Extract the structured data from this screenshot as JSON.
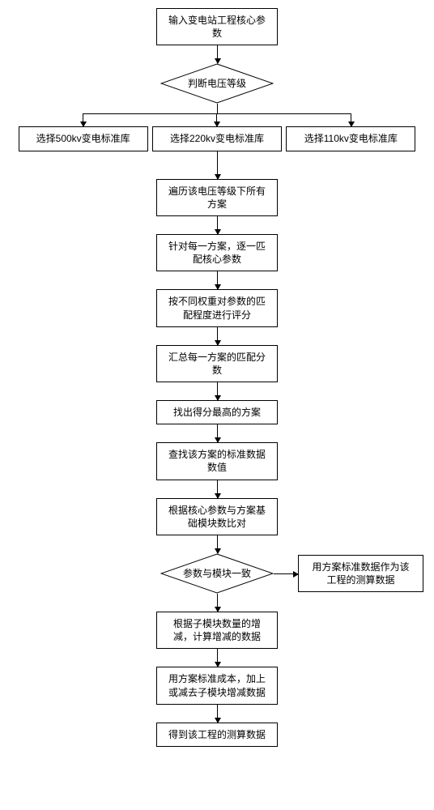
{
  "flow": {
    "start": "输入变电站工程核心参\n数",
    "decision1": "判断电压等级",
    "branch500": "选择500kv变电标准库",
    "branch220": "选择220kv变电标准库",
    "branch110": "选择110kv变电标准库",
    "step_traverse": "遍历该电压等级下所有\n方案",
    "step_match": "针对每一方案，逐一匹\n配核心参数",
    "step_weight": "按不同权重对参数的匹\n配程度进行评分",
    "step_sum": "汇总每一方案的匹配分\n数",
    "step_best": "找出得分最高的方案",
    "step_lookup": "查找该方案的标准数据\n数值",
    "step_compare": "根据核心参数与方案基\n础模块数比对",
    "decision2": "参数与模块一致",
    "side_result": "用方案标准数据作为该\n工程的测算数据",
    "step_adjust": "根据子模块数量的增\n减，计算增减的数据",
    "step_apply": "用方案标准成本，加上\n或减去子模块增减数据",
    "step_final": "得到该工程的测算数据"
  },
  "colors": {
    "line": "#000000",
    "bg": "#ffffff"
  }
}
